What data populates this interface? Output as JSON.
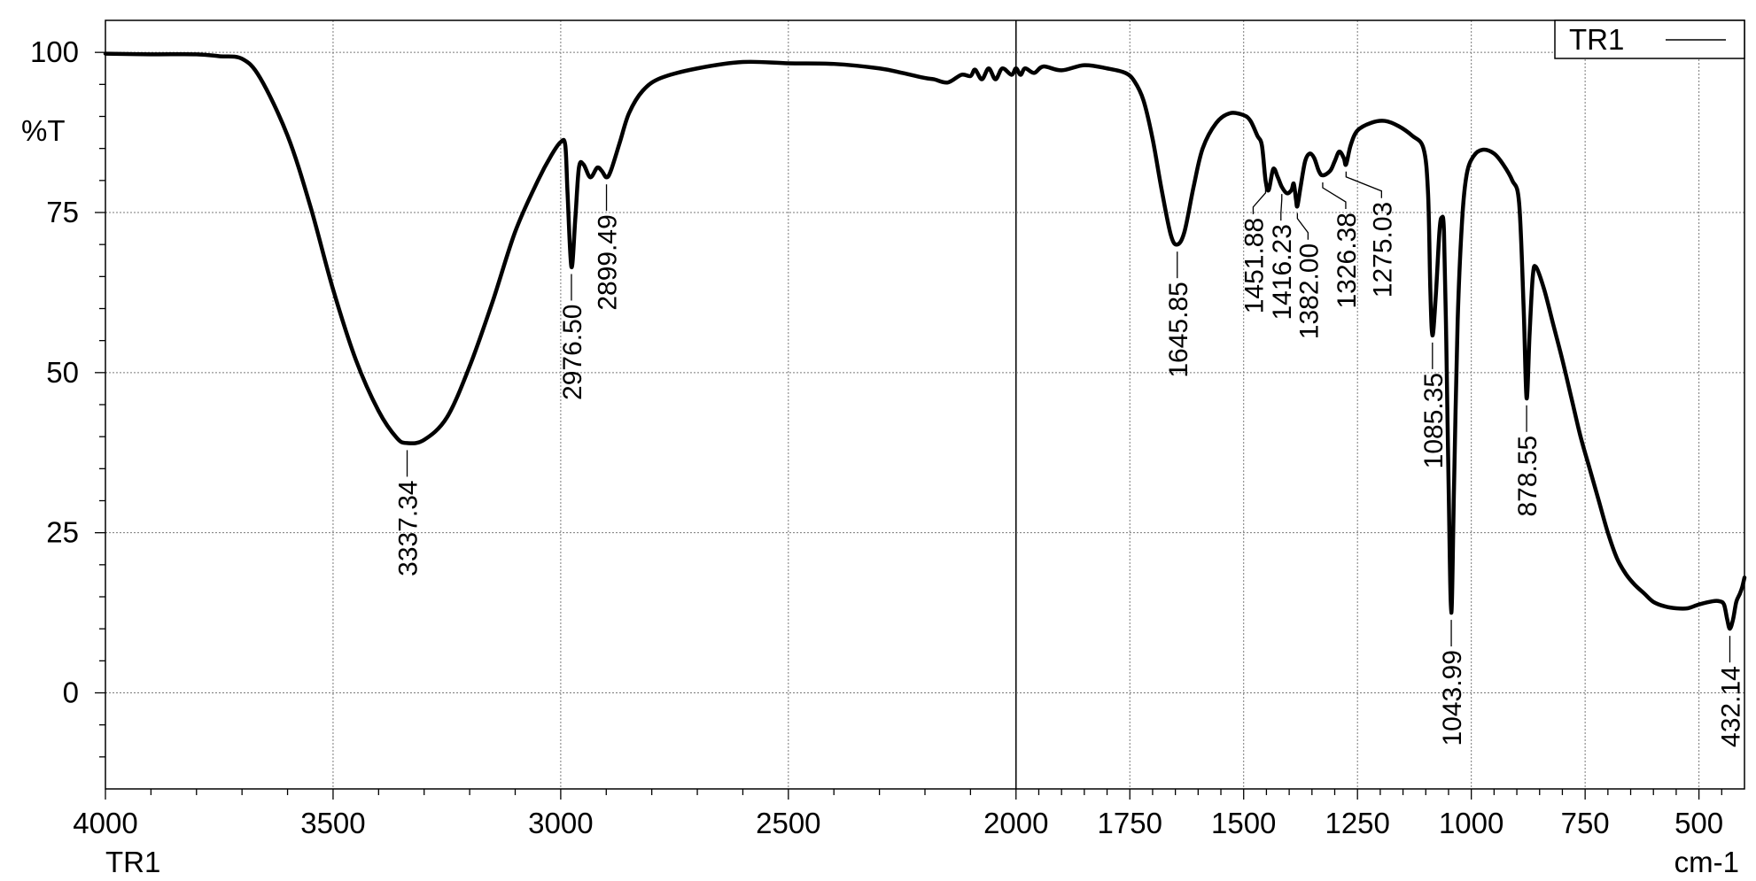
{
  "chart_data": {
    "type": "line",
    "title": "",
    "xlabel": "cm-1",
    "ylabel": "%T",
    "series_label": "TR1",
    "xlim": [
      4000,
      400
    ],
    "ylim": [
      -15,
      105
    ],
    "x_reversed": true,
    "grid": true,
    "legend_position": "top-right",
    "x_ticks": [
      4000,
      3500,
      3000,
      2500,
      2000,
      1750,
      1500,
      1250,
      1000,
      750,
      500
    ],
    "y_ticks": [
      0,
      25,
      50,
      75,
      100
    ],
    "series": [
      {
        "name": "TR1",
        "color": "#000000",
        "points": [
          [
            4000,
            99.8
          ],
          [
            3900,
            99.7
          ],
          [
            3800,
            99.7
          ],
          [
            3750,
            99.4
          ],
          [
            3700,
            99.0
          ],
          [
            3660,
            96
          ],
          [
            3600,
            87
          ],
          [
            3550,
            76
          ],
          [
            3500,
            63
          ],
          [
            3450,
            52
          ],
          [
            3400,
            44
          ],
          [
            3360,
            39.8
          ],
          [
            3337.34,
            39.0
          ],
          [
            3300,
            39.5
          ],
          [
            3250,
            43
          ],
          [
            3200,
            51
          ],
          [
            3150,
            61
          ],
          [
            3100,
            72
          ],
          [
            3050,
            80
          ],
          [
            3020,
            84
          ],
          [
            3000,
            86
          ],
          [
            2990,
            85.5
          ],
          [
            2985,
            78
          ],
          [
            2976.5,
            66.5
          ],
          [
            2968,
            74
          ],
          [
            2960,
            82
          ],
          [
            2950,
            82.5
          ],
          [
            2935,
            80.5
          ],
          [
            2920,
            82
          ],
          [
            2910,
            81.5
          ],
          [
            2899.49,
            80.5
          ],
          [
            2890,
            81.5
          ],
          [
            2870,
            86
          ],
          [
            2850,
            90.5
          ],
          [
            2820,
            94
          ],
          [
            2780,
            96
          ],
          [
            2700,
            97.5
          ],
          [
            2600,
            98.5
          ],
          [
            2500,
            98.3
          ],
          [
            2400,
            98.2
          ],
          [
            2300,
            97.5
          ],
          [
            2250,
            96.8
          ],
          [
            2200,
            96
          ],
          [
            2180,
            95.8
          ],
          [
            2150,
            95.3
          ],
          [
            2120,
            96.5
          ],
          [
            2100,
            96.3
          ],
          [
            2090,
            97.3
          ],
          [
            2075,
            95.8
          ],
          [
            2060,
            97.5
          ],
          [
            2045,
            95.8
          ],
          [
            2030,
            97.5
          ],
          [
            2010,
            96.5
          ],
          [
            2000,
            97.5
          ],
          [
            1990,
            96.5
          ],
          [
            1980,
            97.5
          ],
          [
            1960,
            96.8
          ],
          [
            1940,
            97.8
          ],
          [
            1900,
            97.2
          ],
          [
            1850,
            98.0
          ],
          [
            1800,
            97.5
          ],
          [
            1760,
            96.8
          ],
          [
            1740,
            95.5
          ],
          [
            1720,
            92.5
          ],
          [
            1700,
            86.5
          ],
          [
            1680,
            78.5
          ],
          [
            1660,
            71.5
          ],
          [
            1645.85,
            70.0
          ],
          [
            1630,
            72
          ],
          [
            1610,
            79
          ],
          [
            1590,
            85
          ],
          [
            1560,
            89
          ],
          [
            1530,
            90.5
          ],
          [
            1500,
            90.2
          ],
          [
            1485,
            89.3
          ],
          [
            1470,
            87
          ],
          [
            1460,
            85.5
          ],
          [
            1451.88,
            80
          ],
          [
            1445,
            78.5
          ],
          [
            1435,
            81.8
          ],
          [
            1425,
            80.5
          ],
          [
            1416.23,
            79
          ],
          [
            1405,
            78
          ],
          [
            1395,
            78.5
          ],
          [
            1390,
            79.5
          ],
          [
            1385,
            77
          ],
          [
            1382.0,
            76
          ],
          [
            1375,
            79
          ],
          [
            1365,
            83
          ],
          [
            1355,
            84.2
          ],
          [
            1345,
            83.5
          ],
          [
            1335,
            81.5
          ],
          [
            1326.38,
            80.8
          ],
          [
            1310,
            81.5
          ],
          [
            1300,
            83
          ],
          [
            1290,
            84.5
          ],
          [
            1280,
            83.5
          ],
          [
            1275.03,
            82.5
          ],
          [
            1265,
            85.5
          ],
          [
            1250,
            87.8
          ],
          [
            1220,
            89
          ],
          [
            1190,
            89.3
          ],
          [
            1160,
            88.5
          ],
          [
            1130,
            87
          ],
          [
            1105,
            85
          ],
          [
            1095,
            78
          ],
          [
            1090,
            63
          ],
          [
            1085.35,
            55.8
          ],
          [
            1078,
            62
          ],
          [
            1070,
            72
          ],
          [
            1065,
            74.2
          ],
          [
            1060,
            72
          ],
          [
            1055,
            55
          ],
          [
            1050,
            33
          ],
          [
            1043.99,
            12.5
          ],
          [
            1038,
            32
          ],
          [
            1030,
            58
          ],
          [
            1020,
            74
          ],
          [
            1010,
            81
          ],
          [
            995,
            83.8
          ],
          [
            975,
            84.8
          ],
          [
            950,
            84.2
          ],
          [
            930,
            82.5
          ],
          [
            910,
            80
          ],
          [
            895,
            76.5
          ],
          [
            885,
            60
          ],
          [
            878.55,
            46
          ],
          [
            872,
            56
          ],
          [
            865,
            65
          ],
          [
            858,
            66.5
          ],
          [
            840,
            63
          ],
          [
            820,
            57.5
          ],
          [
            800,
            52
          ],
          [
            780,
            46
          ],
          [
            760,
            40
          ],
          [
            740,
            35
          ],
          [
            720,
            30
          ],
          [
            700,
            25
          ],
          [
            680,
            21
          ],
          [
            660,
            18.5
          ],
          [
            640,
            16.8
          ],
          [
            620,
            15.5
          ],
          [
            600,
            14.2
          ],
          [
            575,
            13.5
          ],
          [
            550,
            13.2
          ],
          [
            525,
            13.2
          ],
          [
            500,
            13.8
          ],
          [
            470,
            14.3
          ],
          [
            455,
            14.3
          ],
          [
            445,
            13.8
          ],
          [
            438,
            11.5
          ],
          [
            432.14,
            10.0
          ],
          [
            425,
            11.5
          ],
          [
            418,
            14.2
          ],
          [
            410,
            15.5
          ],
          [
            405,
            16.5
          ],
          [
            400,
            18
          ]
        ]
      }
    ],
    "annotations": [
      {
        "label": "3337.34",
        "x": 3337.34
      },
      {
        "label": "2976.50",
        "x": 2976.5
      },
      {
        "label": "2899.49",
        "x": 2899.49
      },
      {
        "label": "1645.85",
        "x": 1645.85
      },
      {
        "label": "1451.88",
        "x": 1451.88
      },
      {
        "label": "1416.23",
        "x": 1416.23
      },
      {
        "label": "1382.00",
        "x": 1382.0
      },
      {
        "label": "1326.38",
        "x": 1326.38
      },
      {
        "label": "1275.03",
        "x": 1275.03
      },
      {
        "label": "1085.35",
        "x": 1085.35
      },
      {
        "label": "1043.99",
        "x": 1043.99
      },
      {
        "label": "878.55",
        "x": 878.55
      },
      {
        "label": "432.14",
        "x": 432.14
      }
    ]
  }
}
